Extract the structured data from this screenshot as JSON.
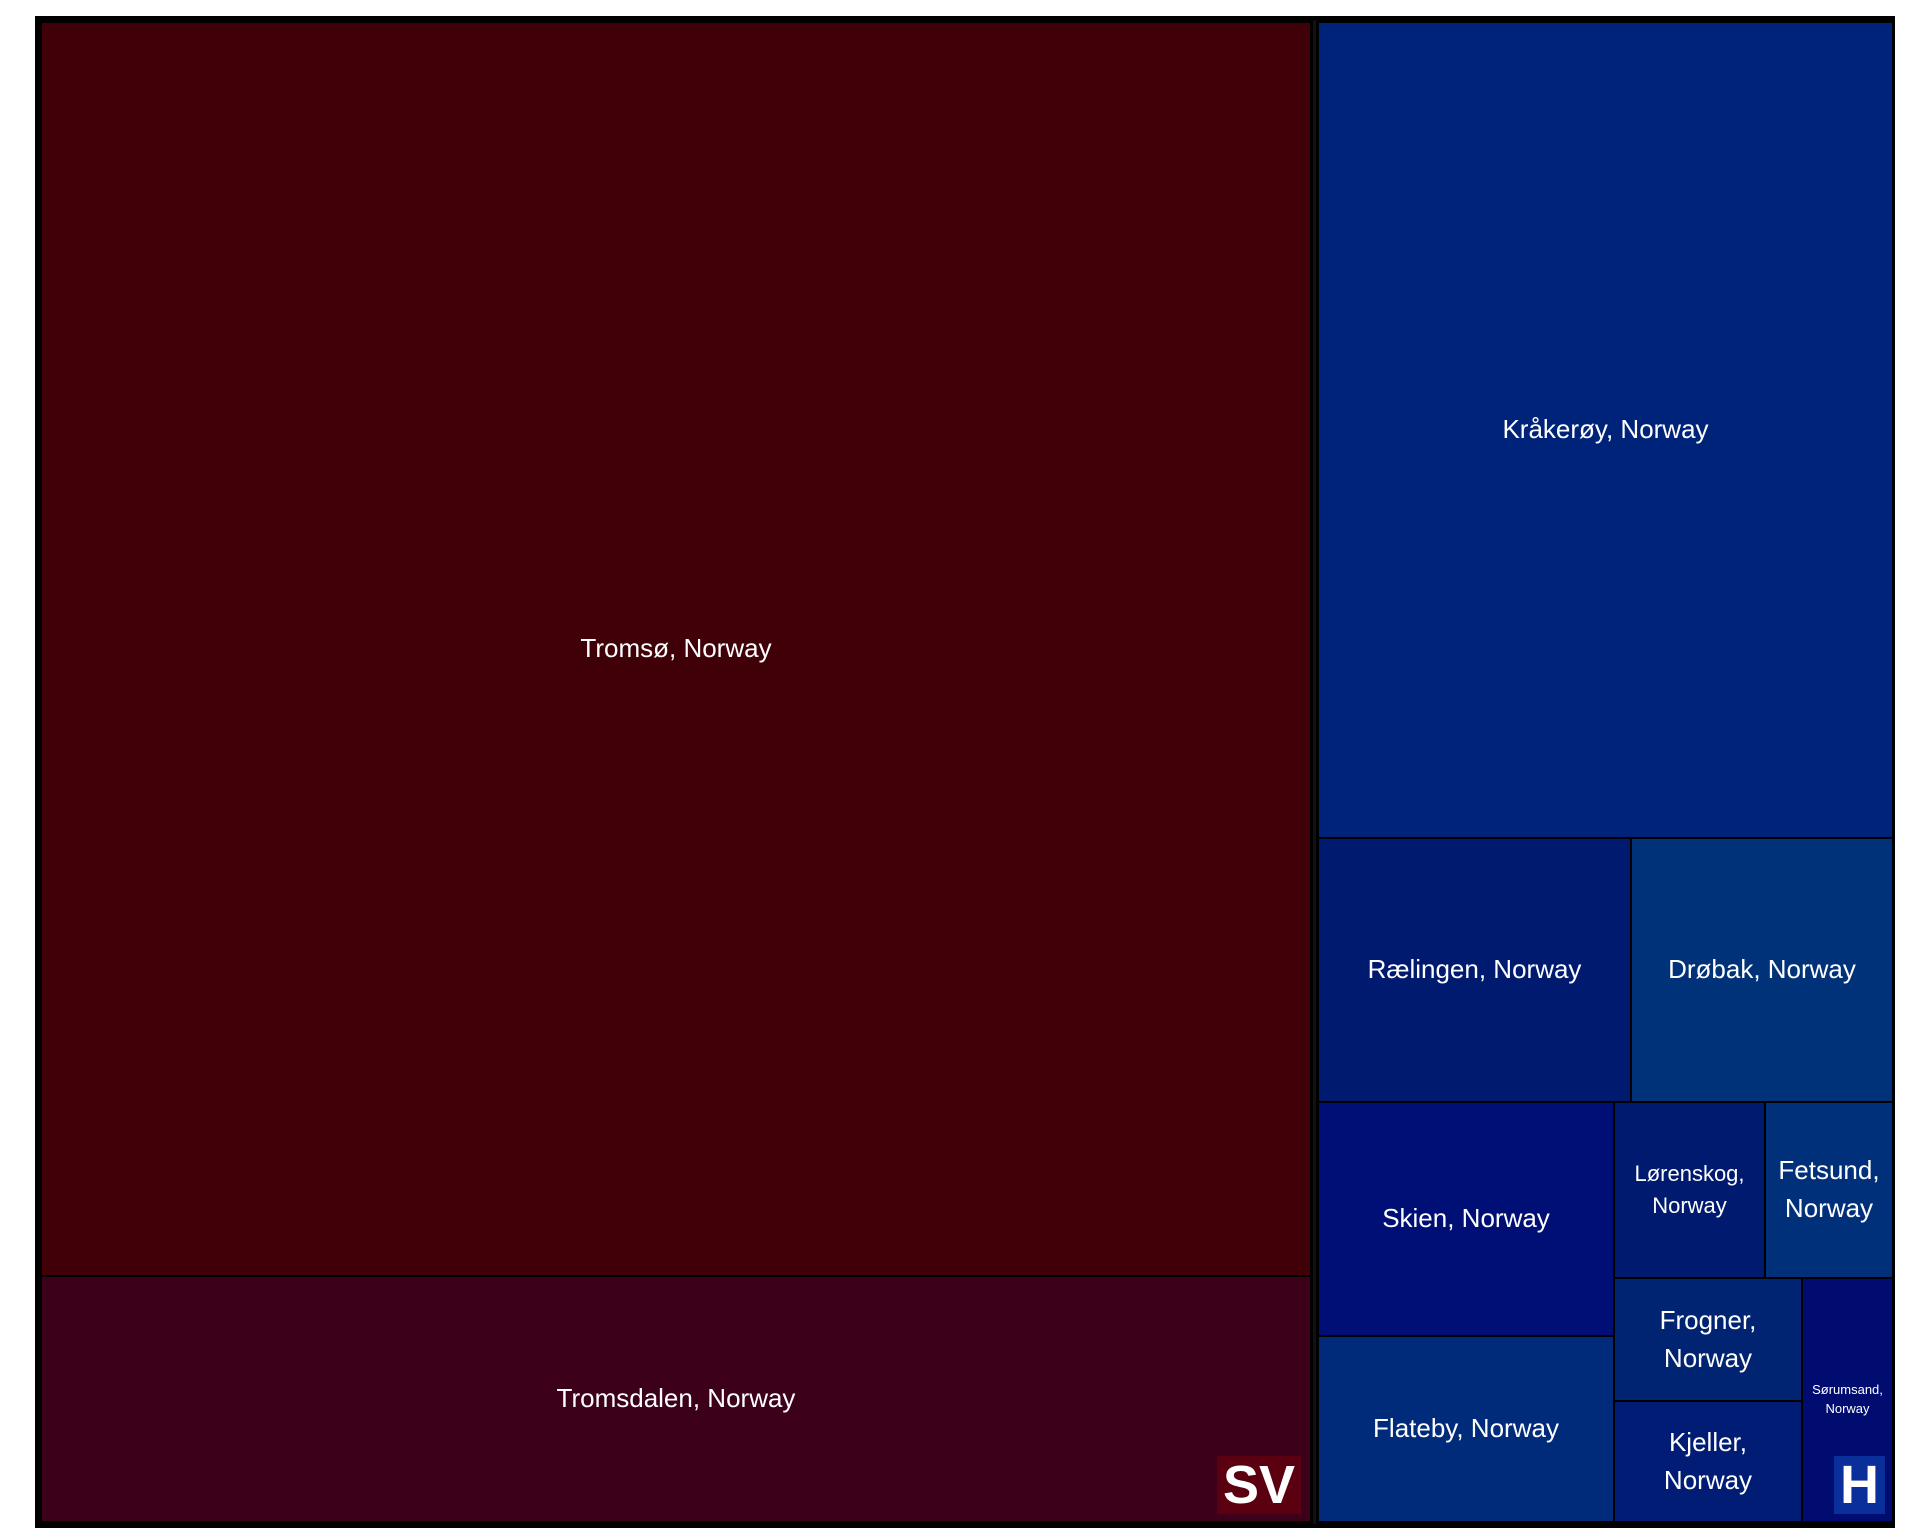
{
  "chart_data": {
    "type": "treemap",
    "groups": [
      {
        "name": "SV",
        "color": "#3f0008",
        "items": [
          {
            "label": "Tromsø, Norway",
            "value": 1060,
            "color": "#3f0008"
          },
          {
            "label": "Tromsdalen, Norway",
            "value": 210,
            "color": "#3c001b"
          }
        ]
      },
      {
        "name": "H",
        "color": "#001f7a",
        "items": [
          {
            "label": "Kråkerøy, Norway",
            "value": 310,
            "color": "#00237a"
          },
          {
            "label": "Rælingen, Norway",
            "value": 55,
            "color": "#001a70"
          },
          {
            "label": "Drøbak, Norway",
            "value": 46,
            "color": "#00327a"
          },
          {
            "label": "Skien, Norway",
            "value": 46,
            "color": "#000f75"
          },
          {
            "label": "Flateby, Norway",
            "value": 36,
            "color": "#002b7a"
          },
          {
            "label": "Lørenskog, Norway",
            "value": 14,
            "color": "#001a70"
          },
          {
            "label": "Fetsund, Norway",
            "value": 13,
            "color": "#00307a"
          },
          {
            "label": "Frogner, Norway",
            "value": 12,
            "color": "#002472"
          },
          {
            "label": "Kjeller, Norway",
            "value": 12,
            "color": "#001c75"
          },
          {
            "label": "Sørumsand, Norway",
            "value": 10,
            "color": "#000c70"
          }
        ]
      }
    ]
  }
}
